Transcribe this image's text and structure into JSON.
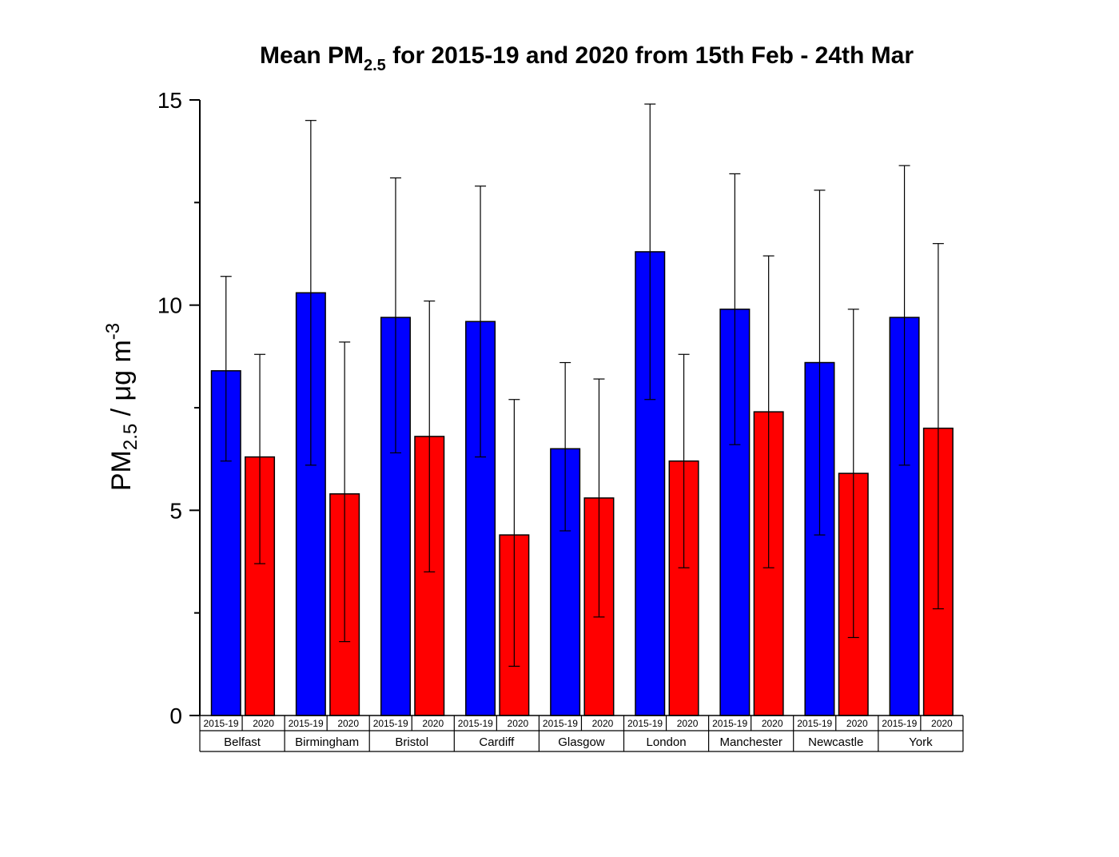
{
  "chart_data": {
    "type": "bar",
    "title_main": "Mean PM",
    "title_sub": "2.5",
    "title_rest": " for 2015-19 and 2020 from 15th Feb - 24th Mar",
    "ylabel_main": "PM",
    "ylabel_sub": "2.5",
    "ylabel_unit": " / μg m",
    "ylabel_sup": "-3",
    "ylim": [
      0,
      15
    ],
    "yticks": [
      "0",
      "5",
      "10",
      "15"
    ],
    "categories": [
      "Belfast",
      "Birmingham",
      "Bristol",
      "Cardiff",
      "Glasgow",
      "London",
      "Manchester",
      "Newcastle",
      "York"
    ],
    "series": [
      {
        "name": "2015-19",
        "color": "#0000ff",
        "values": [
          8.4,
          10.3,
          9.7,
          9.6,
          6.5,
          11.3,
          9.9,
          8.6,
          9.7
        ],
        "err_low": [
          6.2,
          6.1,
          6.4,
          6.3,
          4.5,
          7.7,
          6.6,
          4.4,
          6.1
        ],
        "err_high": [
          10.7,
          14.5,
          13.1,
          12.9,
          8.6,
          14.9,
          13.2,
          12.8,
          13.4
        ]
      },
      {
        "name": "2020",
        "color": "#ff0000",
        "values": [
          6.3,
          5.4,
          6.8,
          4.4,
          5.3,
          6.2,
          7.4,
          5.9,
          7.0
        ],
        "err_low": [
          3.7,
          1.8,
          3.5,
          1.2,
          2.4,
          3.6,
          3.6,
          1.9,
          2.6
        ],
        "err_high": [
          8.8,
          9.1,
          10.1,
          7.7,
          8.2,
          8.8,
          11.2,
          9.9,
          11.5
        ]
      }
    ],
    "grid": false,
    "legend": "none"
  }
}
